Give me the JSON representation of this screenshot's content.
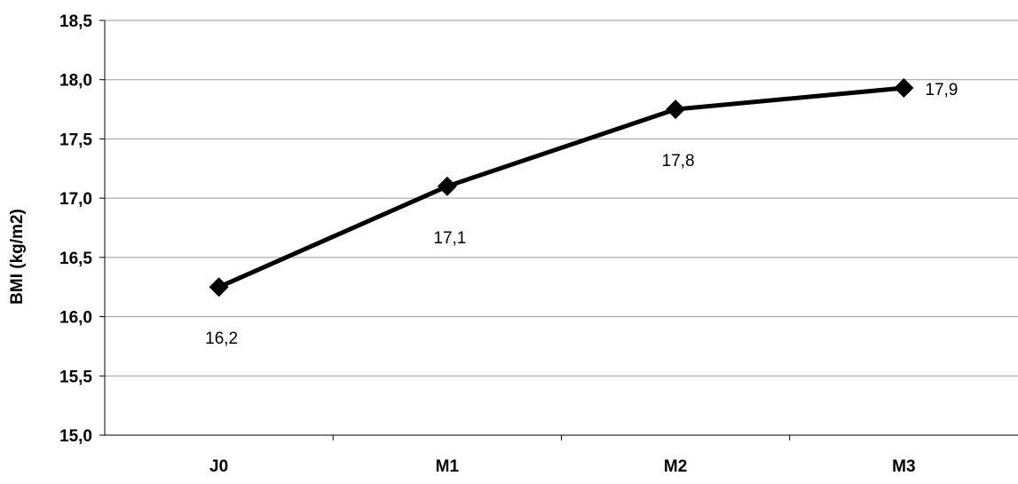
{
  "chart_data": {
    "type": "line",
    "title": "",
    "xlabel": "",
    "ylabel": "BMI (kg/m2)",
    "categories": [
      "J0",
      "M1",
      "M2",
      "M3"
    ],
    "series": [
      {
        "values": [
          16.25,
          17.1,
          17.75,
          17.93
        ],
        "data_labels": [
          "16,2",
          "17,1",
          "17,8",
          "17,9"
        ]
      }
    ],
    "ylim": [
      15.0,
      18.5
    ],
    "y_ticks": [
      15.0,
      15.5,
      16.0,
      16.5,
      17.0,
      17.5,
      18.0,
      18.5
    ],
    "y_tick_labels": [
      "15,0",
      "15,5",
      "16,0",
      "16,5",
      "17,0",
      "17,5",
      "18,0",
      "18,5"
    ],
    "grid": true,
    "marker": "diamond",
    "line_color": "#000000",
    "gridline_color": "#9a9a9a"
  }
}
